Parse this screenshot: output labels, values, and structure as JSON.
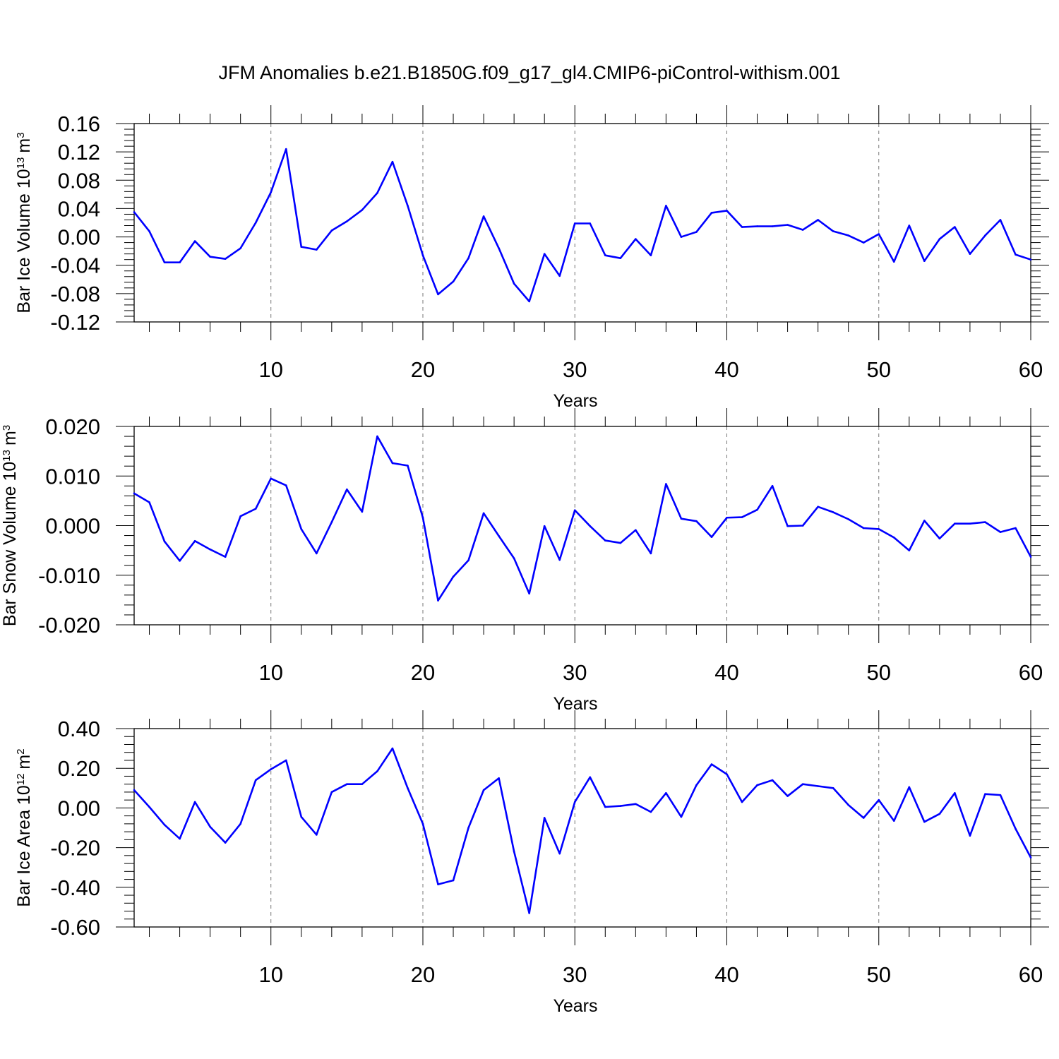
{
  "title": "JFM Anomalies b.e21.B1850G.f09_g17_gl4.CMIP6-piControl-withism.001",
  "colors": {
    "line": "#0000ff",
    "axis": "#000000",
    "grid": "#777777"
  },
  "chart_data": [
    {
      "type": "line",
      "title": "JFM Anomalies b.e21.B1850G.f09_g17_gl4.CMIP6-piControl-withism.001",
      "xlabel": "Years",
      "ylabel": "Bar Ice Volume 10",
      "ylabel_exp": "13",
      "ylabel_unit": "m",
      "ylabel_unit_exp": "3",
      "xlim": [
        1,
        60
      ],
      "ylim": [
        -0.12,
        0.16
      ],
      "xticks": [
        10,
        20,
        30,
        40,
        50,
        60
      ],
      "yticks": [
        -0.12,
        -0.08,
        -0.04,
        0.0,
        0.04,
        0.08,
        0.12,
        0.16
      ],
      "ytick_labels": [
        "-0.12",
        "-0.08",
        "-0.04",
        "0.00",
        "0.04",
        "0.08",
        "0.12",
        "0.16"
      ],
      "grid": "vertical dashed at major x ticks",
      "series": [
        {
          "name": "Bar Ice Volume",
          "x": [
            1,
            2,
            3,
            4,
            5,
            6,
            7,
            8,
            9,
            10,
            11,
            12,
            13,
            14,
            15,
            16,
            17,
            18,
            19,
            20,
            21,
            22,
            23,
            24,
            25,
            26,
            27,
            28,
            29,
            30,
            31,
            32,
            33,
            34,
            35,
            36,
            37,
            38,
            39,
            40,
            41,
            42,
            43,
            44,
            45,
            46,
            47,
            48,
            49,
            50,
            51,
            52,
            53,
            54,
            55,
            56,
            57,
            58,
            59,
            60
          ],
          "values": [
            0.035,
            0.008,
            -0.036,
            -0.036,
            -0.006,
            -0.028,
            -0.031,
            -0.016,
            0.02,
            0.063,
            0.124,
            -0.014,
            -0.018,
            0.009,
            0.022,
            0.038,
            0.062,
            0.106,
            0.044,
            -0.026,
            -0.081,
            -0.063,
            -0.03,
            0.029,
            -0.016,
            -0.066,
            -0.091,
            -0.024,
            -0.055,
            0.019,
            0.019,
            -0.026,
            -0.03,
            -0.003,
            -0.026,
            0.044,
            0.0,
            0.007,
            0.034,
            0.037,
            0.014,
            0.015,
            0.015,
            0.017,
            0.01,
            0.024,
            0.008,
            0.002,
            -0.008,
            0.004,
            -0.035,
            0.016,
            -0.034,
            -0.003,
            0.014,
            -0.024,
            0.002,
            0.024,
            -0.025,
            -0.032
          ]
        }
      ]
    },
    {
      "type": "line",
      "xlabel": "Years",
      "ylabel": "Bar Snow Volume 10",
      "ylabel_exp": "13",
      "ylabel_unit": "m",
      "ylabel_unit_exp": "3",
      "xlim": [
        1,
        60
      ],
      "ylim": [
        -0.02,
        0.02
      ],
      "xticks": [
        10,
        20,
        30,
        40,
        50,
        60
      ],
      "yticks": [
        -0.02,
        -0.01,
        0.0,
        0.01,
        0.02
      ],
      "ytick_labels": [
        "-0.020",
        "-0.010",
        "0.000",
        "0.010",
        "0.020"
      ],
      "grid": "vertical dashed at major x ticks",
      "series": [
        {
          "name": "Bar Snow Volume",
          "x": [
            1,
            2,
            3,
            4,
            5,
            6,
            7,
            8,
            9,
            10,
            11,
            12,
            13,
            14,
            15,
            16,
            17,
            18,
            19,
            20,
            21,
            22,
            23,
            24,
            25,
            26,
            27,
            28,
            29,
            30,
            31,
            32,
            33,
            34,
            35,
            36,
            37,
            38,
            39,
            40,
            41,
            42,
            43,
            44,
            45,
            46,
            47,
            48,
            49,
            50,
            51,
            52,
            53,
            54,
            55,
            56,
            57,
            58,
            59,
            60
          ],
          "values": [
            0.0065,
            0.0047,
            -0.0032,
            -0.0071,
            -0.0031,
            -0.0048,
            -0.0063,
            0.0019,
            0.0034,
            0.0095,
            0.0081,
            -0.0007,
            -0.0056,
            0.0007,
            0.0073,
            0.0028,
            0.018,
            0.0126,
            0.0121,
            0.0016,
            -0.0151,
            -0.0103,
            -0.007,
            0.0025,
            -0.0021,
            -0.0066,
            -0.0137,
            -0.0001,
            -0.0069,
            0.0031,
            -0.0001,
            -0.003,
            -0.0035,
            -0.0009,
            -0.0056,
            0.0084,
            0.0014,
            0.0009,
            -0.0023,
            0.0016,
            0.0017,
            0.0032,
            0.008,
            -0.0001,
            0.0,
            0.0038,
            0.0027,
            0.0013,
            -0.0005,
            -0.0007,
            -0.0024,
            -0.005,
            0.001,
            -0.0026,
            0.0004,
            0.0004,
            0.0007,
            -0.0013,
            -0.0005,
            -0.0063
          ]
        }
      ]
    },
    {
      "type": "line",
      "xlabel": "Years",
      "ylabel": "Bar Ice Area 10",
      "ylabel_exp": "12",
      "ylabel_unit": "m",
      "ylabel_unit_exp": "2",
      "xlim": [
        1,
        60
      ],
      "ylim": [
        -0.6,
        0.4
      ],
      "xticks": [
        10,
        20,
        30,
        40,
        50,
        60
      ],
      "yticks": [
        -0.6,
        -0.4,
        -0.2,
        0.0,
        0.2,
        0.4
      ],
      "ytick_labels": [
        "-0.60",
        "-0.40",
        "-0.20",
        "0.00",
        "0.20",
        "0.40"
      ],
      "grid": "vertical dashed at major x ticks",
      "series": [
        {
          "name": "Bar Ice Area",
          "x": [
            1,
            2,
            3,
            4,
            5,
            6,
            7,
            8,
            9,
            10,
            11,
            12,
            13,
            14,
            15,
            16,
            17,
            18,
            19,
            20,
            21,
            22,
            23,
            24,
            25,
            26,
            27,
            28,
            29,
            30,
            31,
            32,
            33,
            34,
            35,
            36,
            37,
            38,
            39,
            40,
            41,
            42,
            43,
            44,
            45,
            46,
            47,
            48,
            49,
            50,
            51,
            52,
            53,
            54,
            55,
            56,
            57,
            58,
            59,
            60
          ],
          "values": [
            0.09,
            0.005,
            -0.085,
            -0.155,
            0.03,
            -0.095,
            -0.175,
            -0.08,
            0.14,
            0.195,
            0.24,
            -0.045,
            -0.135,
            0.08,
            0.12,
            0.12,
            0.185,
            0.3,
            0.1,
            -0.08,
            -0.385,
            -0.365,
            -0.1,
            0.09,
            0.15,
            -0.22,
            -0.53,
            -0.05,
            -0.23,
            0.03,
            0.155,
            0.005,
            0.01,
            0.02,
            -0.02,
            0.075,
            -0.045,
            0.115,
            0.22,
            0.17,
            0.03,
            0.115,
            0.14,
            0.06,
            0.12,
            0.11,
            0.1,
            0.015,
            -0.05,
            0.04,
            -0.065,
            0.105,
            -0.07,
            -0.03,
            0.075,
            -0.14,
            0.07,
            0.065,
            -0.105,
            -0.25
          ]
        }
      ]
    }
  ]
}
